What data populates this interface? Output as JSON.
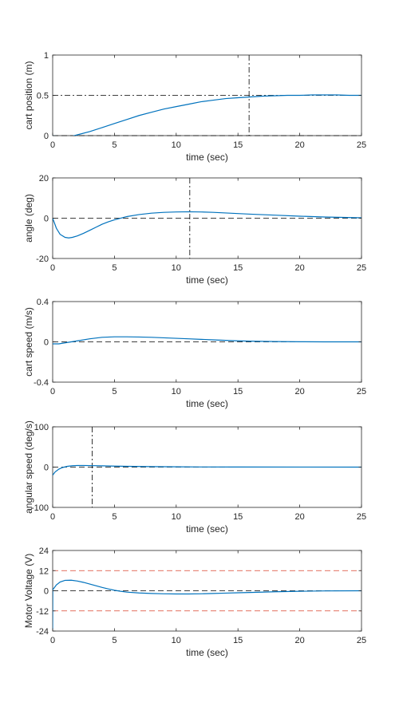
{
  "colors": {
    "line": "#0072BD",
    "reference": "#000000",
    "limit": "#D9412B",
    "axes": "#262626"
  },
  "chart_data": [
    {
      "type": "line",
      "title": "",
      "xlabel": "time (sec)",
      "ylabel": "cart position (m)",
      "xlim": [
        0,
        25
      ],
      "ylim": [
        0,
        1
      ],
      "xticks": [
        0,
        5,
        10,
        15,
        20,
        25
      ],
      "xtick_labels": [
        "0",
        "5",
        "10",
        "15",
        "20",
        "25"
      ],
      "yticks": [
        0,
        0.5,
        1
      ],
      "ytick_labels": [
        "0",
        "0.5",
        "1"
      ],
      "series": [
        {
          "x": [
            0,
            0.5,
            1,
            1.5,
            2,
            3,
            4,
            5,
            6,
            7,
            8,
            9,
            10,
            11,
            12,
            13,
            14,
            15,
            16,
            17,
            18,
            19,
            20,
            21,
            22,
            23,
            24,
            25
          ],
          "y": [
            0,
            -0.01,
            -0.02,
            -0.01,
            0.01,
            0.05,
            0.1,
            0.15,
            0.2,
            0.25,
            0.29,
            0.33,
            0.36,
            0.39,
            0.42,
            0.44,
            0.46,
            0.47,
            0.48,
            0.49,
            0.495,
            0.5,
            0.5,
            0.505,
            0.505,
            0.505,
            0.5,
            0.5
          ]
        }
      ],
      "hlines": [
        {
          "y": 0.5,
          "style": "dash-dot",
          "color": "reference"
        },
        {
          "y": 0,
          "style": "dashed",
          "color": "reference"
        }
      ],
      "vlines": [
        {
          "x": 15.9,
          "style": "dash-dot",
          "color": "reference"
        }
      ]
    },
    {
      "type": "line",
      "title": "",
      "xlabel": "time (sec)",
      "ylabel": "angle (deg)",
      "xlim": [
        0,
        25
      ],
      "ylim": [
        -20,
        20
      ],
      "xticks": [
        0,
        5,
        10,
        15,
        20,
        25
      ],
      "xtick_labels": [
        "0",
        "5",
        "10",
        "15",
        "20",
        "25"
      ],
      "yticks": [
        -20,
        0,
        20
      ],
      "ytick_labels": [
        "-20",
        "0",
        "20"
      ],
      "series": [
        {
          "x": [
            0,
            0.3,
            0.6,
            1,
            1.3,
            1.6,
            2,
            2.5,
            3,
            3.5,
            4,
            4.5,
            5,
            6,
            7,
            8,
            9,
            10,
            11,
            12,
            13,
            14,
            15,
            16,
            18,
            20,
            22,
            25
          ],
          "y": [
            0,
            -5,
            -8,
            -9.5,
            -9.8,
            -9.5,
            -8.8,
            -7.5,
            -6,
            -4.5,
            -3,
            -1.8,
            -0.8,
            0.8,
            1.8,
            2.5,
            2.9,
            3.1,
            3.2,
            3.1,
            2.9,
            2.6,
            2.3,
            2.0,
            1.5,
            1.0,
            0.6,
            0.2
          ]
        }
      ],
      "hlines": [
        {
          "y": 0,
          "style": "dashed",
          "color": "reference"
        }
      ],
      "vlines": [
        {
          "x": 11.1,
          "style": "dash-dot",
          "color": "reference"
        }
      ]
    },
    {
      "type": "line",
      "title": "",
      "xlabel": "time (sec)",
      "ylabel": "cart speed (m/s)",
      "xlim": [
        0,
        25
      ],
      "ylim": [
        -0.4,
        0.4
      ],
      "xticks": [
        0,
        5,
        10,
        15,
        20,
        25
      ],
      "xtick_labels": [
        "0",
        "5",
        "10",
        "15",
        "20",
        "25"
      ],
      "yticks": [
        -0.4,
        0,
        0.4
      ],
      "ytick_labels": [
        "-0.4",
        "0",
        "0.4"
      ],
      "series": [
        {
          "x": [
            0,
            0.5,
            1,
            1.5,
            2,
            3,
            4,
            5,
            6,
            7,
            8,
            9,
            10,
            11,
            12,
            13,
            14,
            15,
            16,
            18,
            20,
            22,
            25
          ],
          "y": [
            -0.02,
            -0.02,
            -0.01,
            0.0,
            0.01,
            0.03,
            0.045,
            0.05,
            0.05,
            0.048,
            0.045,
            0.04,
            0.035,
            0.03,
            0.025,
            0.02,
            0.015,
            0.01,
            0.007,
            0.003,
            0.001,
            0.0,
            0.0
          ]
        }
      ],
      "hlines": [
        {
          "y": 0,
          "style": "dashed",
          "color": "reference"
        }
      ],
      "vlines": []
    },
    {
      "type": "line",
      "title": "",
      "xlabel": "time (sec)",
      "ylabel": "angular speed (deg/s)",
      "xlim": [
        0,
        25
      ],
      "ylim": [
        -100,
        100
      ],
      "xticks": [
        0,
        5,
        10,
        15,
        20,
        25
      ],
      "xtick_labels": [
        "0",
        "5",
        "10",
        "15",
        "20",
        "25"
      ],
      "yticks": [
        -100,
        0,
        100
      ],
      "ytick_labels": [
        "-100",
        "0",
        "100"
      ],
      "series": [
        {
          "x": [
            0,
            0.2,
            0.5,
            0.8,
            1.2,
            1.6,
            2,
            2.5,
            3,
            4,
            5,
            6,
            8,
            10,
            12,
            15,
            20,
            25
          ],
          "y": [
            -20,
            -12,
            -5,
            -1,
            2,
            3.5,
            4,
            4,
            3.8,
            3.2,
            2.5,
            2,
            1.2,
            0.8,
            0.4,
            0.2,
            0.1,
            0
          ]
        }
      ],
      "hlines": [
        {
          "y": 0,
          "style": "dashed",
          "color": "reference"
        }
      ],
      "vlines": [
        {
          "x": 3.2,
          "style": "dash-dot",
          "color": "reference"
        }
      ]
    },
    {
      "type": "line",
      "title": "",
      "xlabel": "time (sec)",
      "ylabel": "Motor Voltage (V)",
      "xlim": [
        0,
        25
      ],
      "ylim": [
        -24,
        24
      ],
      "xticks": [
        0,
        5,
        10,
        15,
        20,
        25
      ],
      "xtick_labels": [
        "0",
        "5",
        "10",
        "15",
        "20",
        "25"
      ],
      "yticks": [
        -24,
        -12,
        0,
        12,
        24
      ],
      "ytick_labels": [
        "-24",
        "-12",
        "0",
        "12",
        "24"
      ],
      "series": [
        {
          "x": [
            0,
            0.01,
            0.05,
            0.3,
            0.6,
            1,
            1.5,
            2,
            2.5,
            3,
            3.5,
            4,
            4.5,
            5,
            5.5,
            6,
            7,
            8,
            9,
            10,
            11,
            12,
            13,
            14,
            15,
            16,
            18,
            20,
            22,
            25
          ],
          "y": [
            -23,
            1,
            1,
            3.5,
            5.2,
            6.2,
            6.3,
            5.8,
            5.0,
            4.0,
            3.0,
            2.0,
            1.1,
            0.3,
            -0.3,
            -0.8,
            -1.3,
            -1.6,
            -1.8,
            -1.9,
            -1.9,
            -1.8,
            -1.6,
            -1.4,
            -1.2,
            -1.0,
            -0.6,
            -0.3,
            -0.1,
            0
          ]
        }
      ],
      "hlines": [
        {
          "y": 12,
          "style": "dashed",
          "color": "limit"
        },
        {
          "y": 0,
          "style": "dashed",
          "color": "reference"
        },
        {
          "y": -12,
          "style": "dashed",
          "color": "limit"
        }
      ],
      "vlines": []
    }
  ]
}
